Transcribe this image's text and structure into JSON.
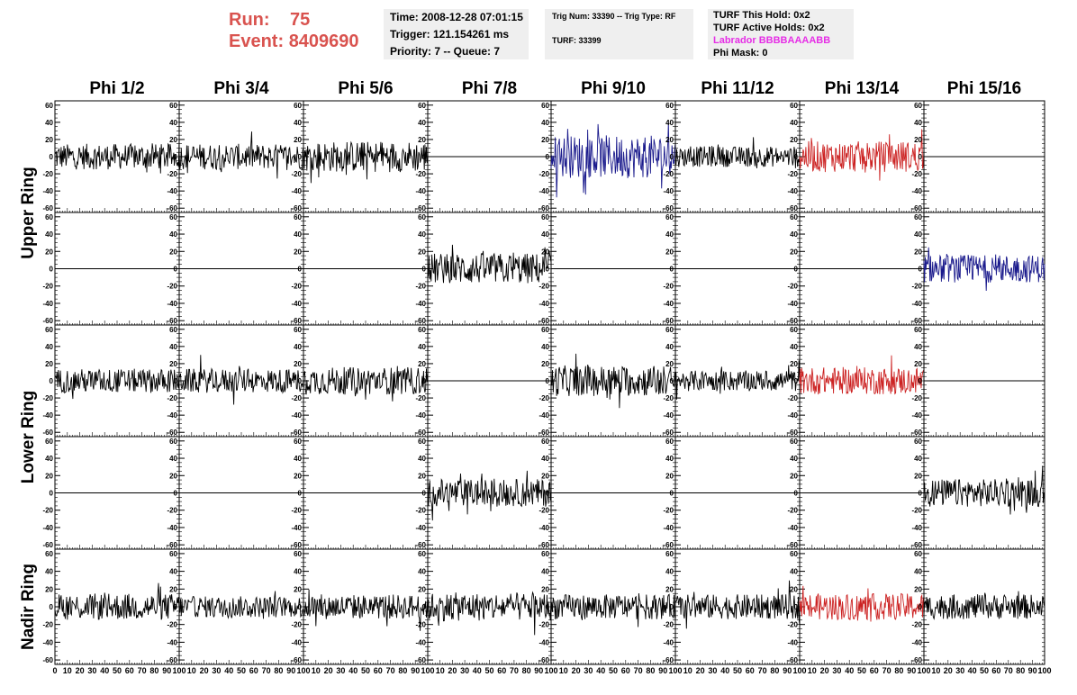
{
  "header": {
    "run_label": "Run:",
    "run_value": "75",
    "event_label": "Event:",
    "event_value": "8409690",
    "time": "Time: 2008-12-28 07:01:15",
    "trigger": "Trigger: 121.154261 ms",
    "priority": "Priority: 7 -- Queue: 7",
    "trig_num": "Trig Num: 33390 -- Trig Type: RF",
    "turf": "TURF: 33399",
    "turf_hold": "TURF This Hold: 0x2",
    "turf_active": "TURF Active Holds: 0x2",
    "labrador": "Labrador BBBBAAAABB",
    "phi_mask": "Phi Mask: 0"
  },
  "colors": {
    "run_text": "#d9534f",
    "labrador_text": "#e62ee6",
    "blue": "#1a1a8c",
    "red": "#cc2222",
    "black": "#000000"
  },
  "chart_data": {
    "type": "line",
    "column_titles": [
      "Phi 1/2",
      "Phi 3/4",
      "Phi 5/6",
      "Phi 7/8",
      "Phi 9/10",
      "Phi 11/12",
      "Phi 13/14",
      "Phi 15/16"
    ],
    "ring_labels": [
      "Upper Ring",
      "Lower Ring",
      "Nadir Ring"
    ],
    "ylim": [
      -65,
      65
    ],
    "y_ticks": [
      -60,
      -40,
      -20,
      0,
      20,
      40,
      60
    ],
    "xlim": [
      0,
      100
    ],
    "x_ticks": [
      0,
      10,
      20,
      30,
      40,
      50,
      60,
      70,
      80,
      90,
      100
    ],
    "panel_colors": [
      [
        "black",
        "black",
        "black",
        "black",
        "blue",
        "black",
        "red",
        "black"
      ],
      [
        "black",
        "black",
        "black",
        "black",
        "black",
        "black",
        "black",
        "blue"
      ],
      [
        "black",
        "black",
        "black",
        "black",
        "black",
        "black",
        "red",
        "black"
      ],
      [
        "black",
        "black",
        "black",
        "black",
        "black",
        "black",
        "black",
        "black"
      ],
      [
        "black",
        "black",
        "black",
        "black",
        "black",
        "black",
        "red",
        "black"
      ]
    ],
    "panel_amplitude": [
      [
        15,
        15,
        18,
        0,
        25,
        12,
        18,
        0
      ],
      [
        0,
        0,
        0,
        18,
        0,
        0,
        0,
        16
      ],
      [
        14,
        14,
        16,
        0,
        18,
        12,
        16,
        0
      ],
      [
        0,
        0,
        0,
        16,
        0,
        0,
        0,
        16
      ],
      [
        15,
        12,
        14,
        16,
        14,
        14,
        15,
        14
      ]
    ]
  }
}
